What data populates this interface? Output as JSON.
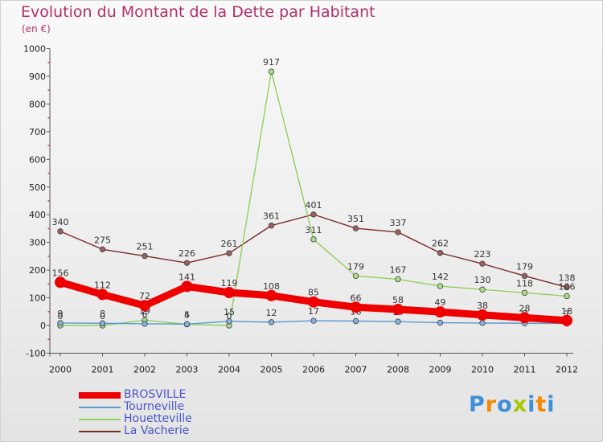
{
  "chart_data": {
    "type": "line",
    "title": "Evolution du Montant de la Dette par Habitant",
    "subtitle": "(en €)",
    "categories": [
      "2000",
      "2001",
      "2002",
      "2003",
      "2004",
      "2005",
      "2006",
      "2007",
      "2008",
      "2009",
      "2010",
      "2011",
      "2012"
    ],
    "ylim": [
      -100,
      1000
    ],
    "yticks": [
      -100,
      0,
      100,
      200,
      300,
      400,
      500,
      600,
      700,
      800,
      900,
      1000
    ],
    "grid": false,
    "legend_position": "bottom-left",
    "series": [
      {
        "name": "La Vacherie",
        "color": "#7b2a2a",
        "values": [
          340,
          275,
          251,
          226,
          261,
          361,
          401,
          351,
          337,
          262,
          223,
          179,
          138
        ],
        "labels": [
          "340",
          "275",
          "251",
          "226",
          "261",
          "361",
          "401",
          "351",
          "337",
          "262",
          "223",
          "179",
          "138"
        ]
      },
      {
        "name": "Houetteville",
        "color": "#90d060",
        "values": [
          0,
          0,
          19,
          4,
          0,
          917,
          311,
          179,
          167,
          142,
          130,
          118,
          106
        ],
        "labels": [
          "0",
          "0",
          "19",
          "4",
          "0",
          "917",
          "311",
          "179",
          "167",
          "142",
          "130",
          "118",
          "106"
        ]
      },
      {
        "name": "Tourneville",
        "color": "#5a9ad0",
        "values": [
          9,
          8,
          6,
          5,
          15,
          12,
          17,
          16,
          14,
          10,
          9,
          8,
          7
        ],
        "labels": [
          "9",
          "8",
          "6",
          "5",
          "15",
          "12",
          "17",
          "16",
          "14",
          "10",
          "9",
          "8",
          "7"
        ]
      },
      {
        "name": "BROSVILLE",
        "color": "#ee0000",
        "values": [
          156,
          112,
          72,
          141,
          119,
          108,
          85,
          66,
          58,
          49,
          38,
          28,
          18
        ],
        "labels": [
          "156",
          "112",
          "72",
          "141",
          "119",
          "108",
          "85",
          "66",
          "58",
          "49",
          "38",
          "28",
          "18"
        ]
      }
    ],
    "legend_order": [
      "BROSVILLE",
      "Tourneville",
      "Houetteville",
      "La Vacherie"
    ]
  },
  "logo": {
    "text": "Proxiti",
    "letters": [
      {
        "ch": "P",
        "color": "#3c8fd8"
      },
      {
        "ch": "r",
        "color": "#f08a00"
      },
      {
        "ch": "o",
        "color": "#3c8fd8"
      },
      {
        "ch": "x",
        "color": "#a8c800"
      },
      {
        "ch": "i",
        "color": "#3c8fd8"
      },
      {
        "ch": "t",
        "color": "#f08a00"
      },
      {
        "ch": "i",
        "color": "#3c8fd8"
      }
    ]
  }
}
